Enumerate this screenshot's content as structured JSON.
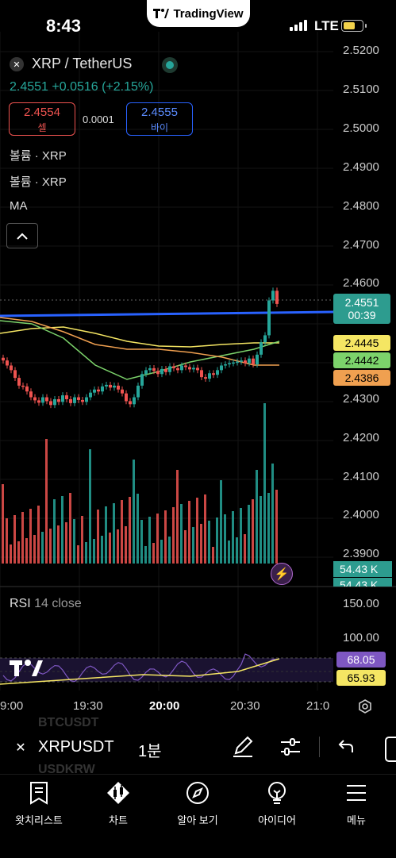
{
  "status": {
    "time": "8:43",
    "carrier": "LTE",
    "brand": "TradingView"
  },
  "header": {
    "symbol": "XRP / TetherUS",
    "symbol_icon": "xrp-icon",
    "price_line": "2.4551 +0.0516 (+2.15%)",
    "sell_price": "2.4554",
    "sell_label": "셀",
    "spread": "0.0001",
    "buy_price": "2.4555",
    "buy_label": "바이"
  },
  "indicators": [
    "볼륨 · XRP",
    "볼륨 · XRP",
    "MA"
  ],
  "price_axis": [
    "2.5200",
    "2.5100",
    "2.5000",
    "2.4900",
    "2.4800",
    "2.4700",
    "2.4600",
    "2.4300",
    "2.4200",
    "2.4100",
    "2.4000",
    "2.3900"
  ],
  "price_tags": {
    "last": "2.4551",
    "countdown": "00:39",
    "ma_yellow": "2.4445",
    "ma_green": "2.4442",
    "ma_orange": "2.4386"
  },
  "volume_tags": [
    "54.43 K",
    "54.43 K"
  ],
  "rsi": {
    "label": "RSI",
    "params": "14 close",
    "axis": [
      "150.00",
      "100.00"
    ],
    "value": "68.05",
    "ma_value": "65.93"
  },
  "time_axis": [
    "9:00",
    "19:30",
    "20:00",
    "20:30",
    "21:0"
  ],
  "watch_ghost": [
    "BTCUSDT",
    "USDKRW"
  ],
  "toolbar": {
    "symbol": "XRPUSDT",
    "interval": "1분"
  },
  "nav": [
    {
      "label": "왓치리스트",
      "icon": "watchlist-icon"
    },
    {
      "label": "차트",
      "icon": "chart-icon"
    },
    {
      "label": "알아 보기",
      "icon": "compass-icon"
    },
    {
      "label": "아이디어",
      "icon": "lightbulb-icon"
    },
    {
      "label": "메뉴",
      "icon": "menu-icon"
    }
  ],
  "colors": {
    "up": "#26a69a",
    "down": "#ef5350",
    "trendline": "#2962ff",
    "ma_yellow": "#f5e663",
    "ma_green": "#7cd36b",
    "ma_orange": "#f0a050",
    "rsi_line": "#7e57c2"
  }
}
